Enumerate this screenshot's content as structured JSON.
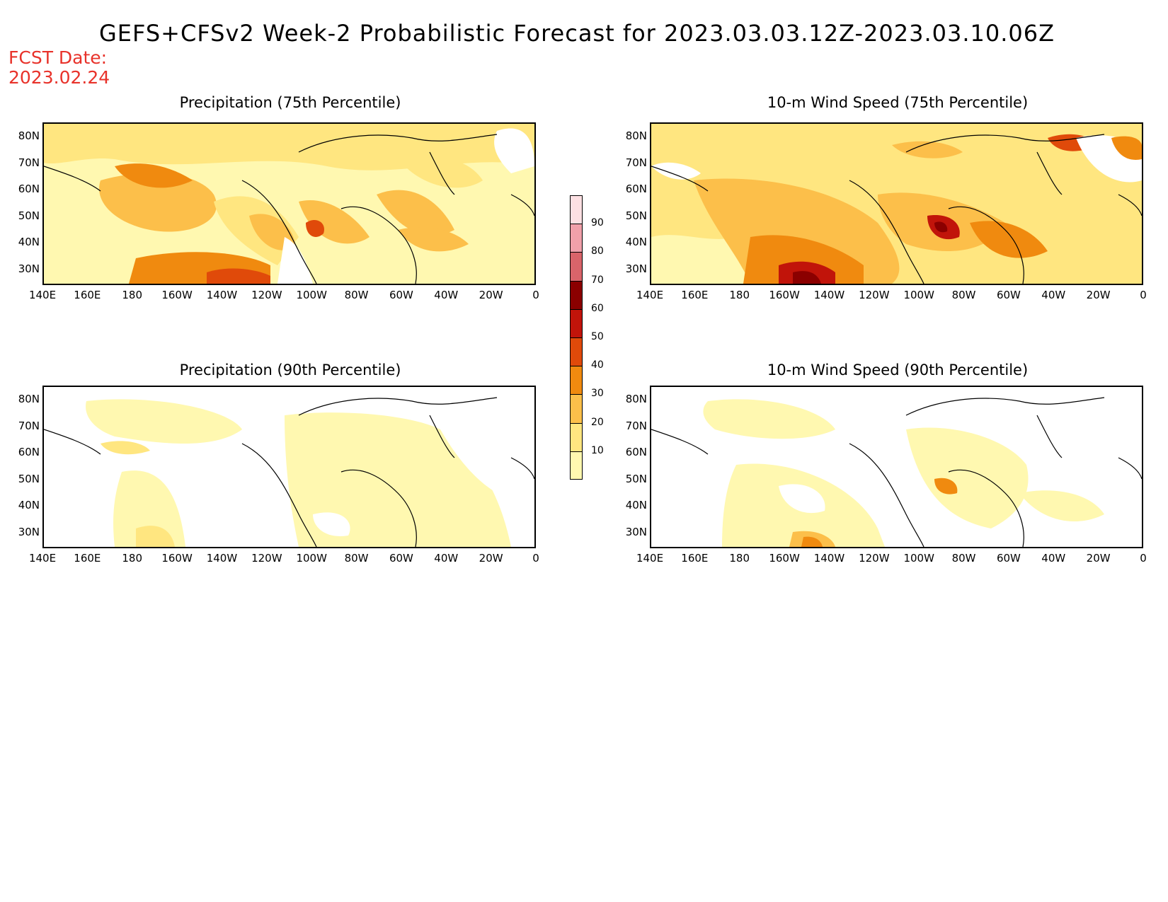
{
  "title": "GEFS+CFSv2 Week-2 Probabilistic Forecast for 2023.03.03.12Z-2023.03.10.06Z",
  "fcst_label": "FCST Date:",
  "fcst_date": "2023.02.24",
  "panels": [
    {
      "title": "Precipitation (75th Percentile)"
    },
    {
      "title": "10-m Wind Speed (75th Percentile)"
    },
    {
      "title": "Precipitation (90th Percentile)"
    },
    {
      "title": "10-m Wind Speed (90th Percentile)"
    }
  ],
  "lat_labels": [
    "80N",
    "70N",
    "60N",
    "50N",
    "40N",
    "30N"
  ],
  "lon_labels": [
    "140E",
    "160E",
    "180",
    "160W",
    "140W",
    "120W",
    "100W",
    "80W",
    "60W",
    "40W",
    "20W",
    "0"
  ],
  "colorbar": {
    "levels": [
      "10",
      "20",
      "30",
      "40",
      "50",
      "60",
      "70",
      "80",
      "90"
    ],
    "colors": [
      "#fff8b0",
      "#ffe680",
      "#fcbf4a",
      "#f08a0f",
      "#e04a0a",
      "#c1140a",
      "#8b0000",
      "#d9646a",
      "#f0a0aa",
      "#fde0e3"
    ]
  }
}
